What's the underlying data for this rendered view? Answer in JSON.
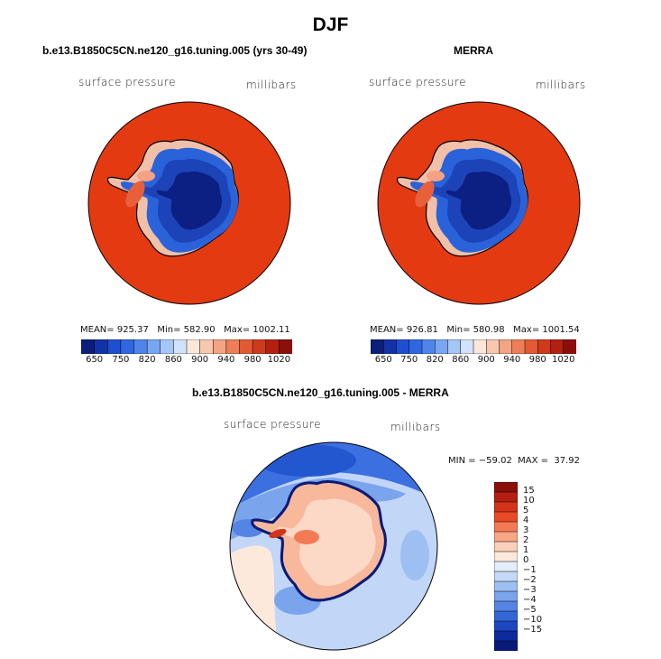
{
  "title": "DJF",
  "panels": [
    {
      "title": "b.e13.B1850C5CN.ne120_g16.tuning.005 (yrs 30-49)",
      "variable": "surface pressure",
      "units": "millibars",
      "stats": "MEAN= 925.37   Min= 582.90   Max= 1002.11"
    },
    {
      "title": "MERRA",
      "variable": "surface pressure",
      "units": "millibars",
      "stats": "MEAN= 926.81   Min= 580.98   Max= 1001.54"
    },
    {
      "title": "b.e13.B1850C5CN.ne120_g16.tuning.005 - MERRA",
      "variable": "surface pressure",
      "units": "millibars",
      "stats": "MIN = −59.02  MAX =  37.92"
    }
  ],
  "colorbar_abs": {
    "colors": [
      "#0a1e7a",
      "#1432a8",
      "#1e4fd0",
      "#2f67e0",
      "#4f85ea",
      "#79a6f0",
      "#a6c6f6",
      "#d2e2fa",
      "#fbe7d8",
      "#f7c8ad",
      "#f3a482",
      "#ee7d58",
      "#e35a35",
      "#cf3a1c",
      "#b32010",
      "#8b0f0a"
    ],
    "labels": [
      "650",
      "750",
      "820",
      "860",
      "900",
      "940",
      "980",
      "1020"
    ]
  },
  "colorbar_diff": {
    "colors": [
      "#8b0f0a",
      "#b31e10",
      "#d3331a",
      "#ea4a25",
      "#f47a56",
      "#f8a686",
      "#fbd0bb",
      "#fde9dc",
      "#e3eefc",
      "#c4d9f8",
      "#9ebff2",
      "#7aa4ec",
      "#5585e4",
      "#3566d8",
      "#1c47c0",
      "#0d2a9e",
      "#0a1a78"
    ],
    "labels": [
      "15",
      "10",
      "5",
      "4",
      "3",
      "2",
      "1",
      "0",
      "−1",
      "−2",
      "−3",
      "−4",
      "−5",
      "−10",
      "−15"
    ]
  }
}
